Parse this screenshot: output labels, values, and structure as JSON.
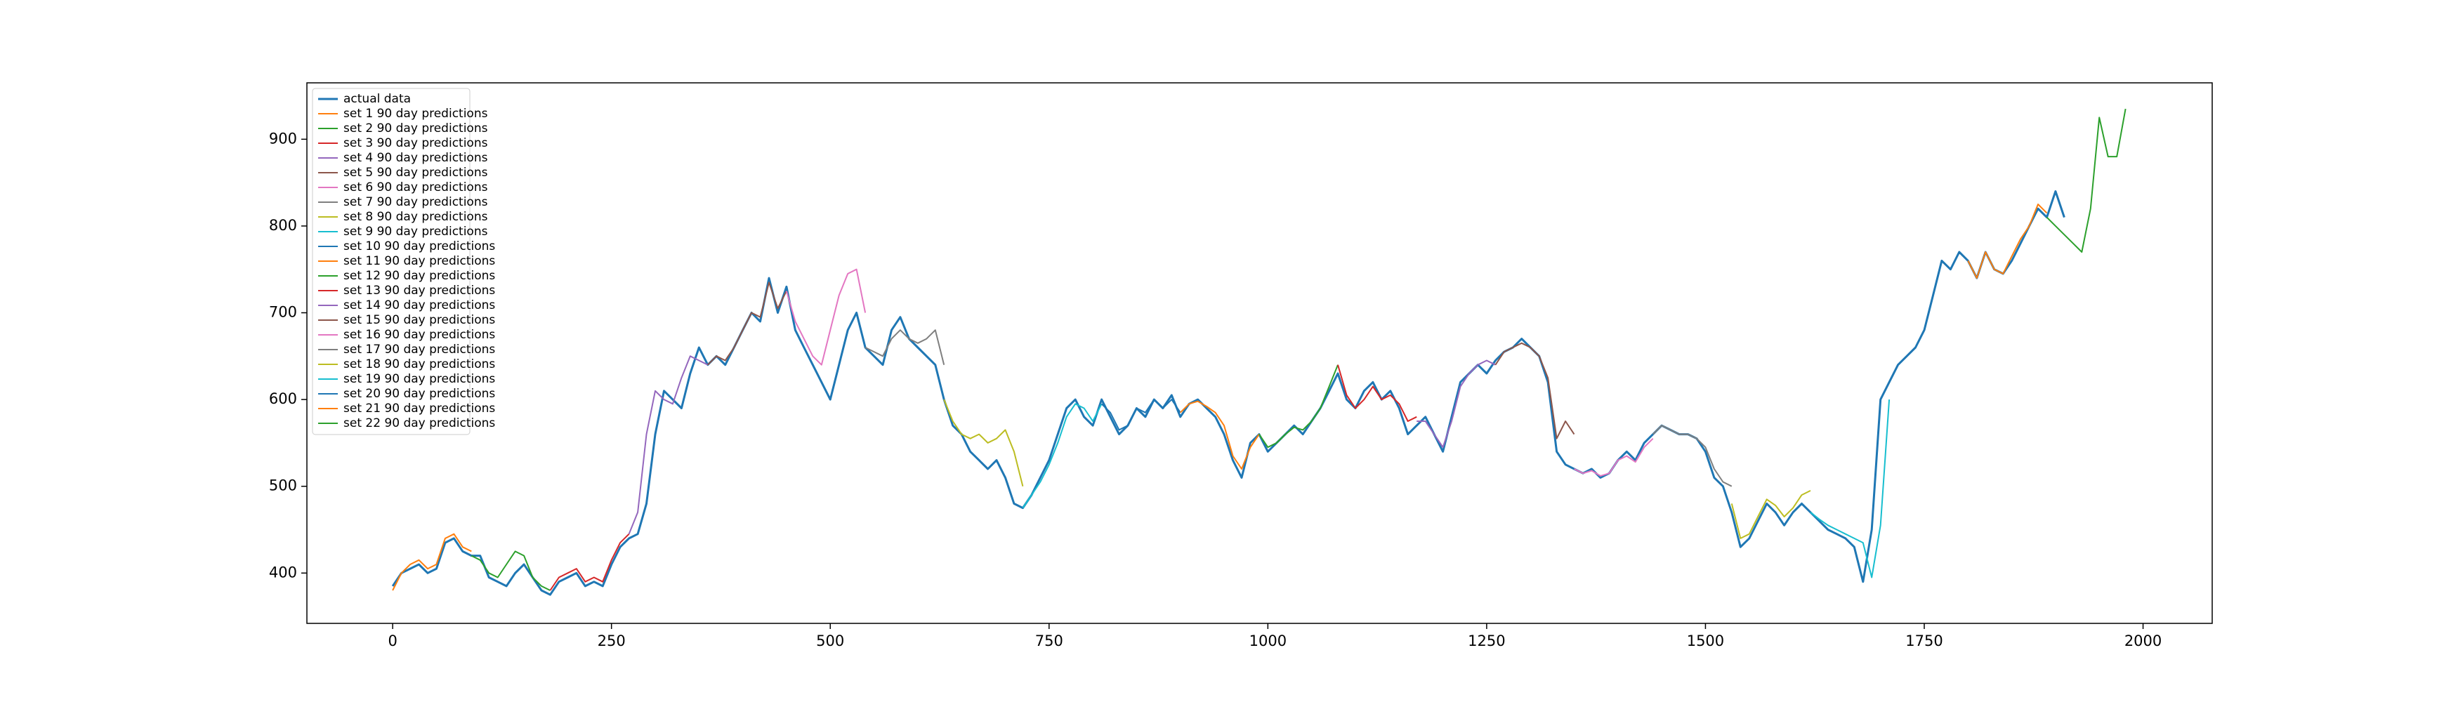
{
  "chart_data": {
    "type": "line",
    "xlim": [
      -98,
      2079
    ],
    "ylim": [
      342,
      965
    ],
    "xticks": [
      0,
      250,
      500,
      750,
      1000,
      1250,
      1500,
      1750,
      2000
    ],
    "yticks": [
      400,
      500,
      600,
      700,
      800,
      900
    ],
    "legend": "upper left",
    "series": [
      {
        "name": "actual data",
        "color": "#1f77b4",
        "x": [
          0,
          10,
          20,
          30,
          40,
          50,
          60,
          70,
          80,
          90,
          100,
          110,
          120,
          130,
          140,
          150,
          160,
          170,
          180,
          190,
          200,
          210,
          220,
          230,
          240,
          250,
          260,
          270,
          280,
          290,
          300,
          310,
          320,
          330,
          340,
          350,
          360,
          370,
          380,
          390,
          400,
          410,
          420,
          430,
          440,
          450,
          460,
          470,
          480,
          490,
          500,
          510,
          520,
          530,
          540,
          550,
          560,
          570,
          580,
          590,
          600,
          610,
          620,
          630,
          640,
          650,
          660,
          670,
          680,
          690,
          700,
          710,
          720,
          730,
          740,
          750,
          760,
          770,
          780,
          790,
          800,
          810,
          820,
          830,
          840,
          850,
          860,
          870,
          880,
          890,
          900,
          910,
          920,
          930,
          940,
          950,
          960,
          970,
          980,
          990,
          1000,
          1010,
          1020,
          1030,
          1040,
          1050,
          1060,
          1070,
          1080,
          1090,
          1100,
          1110,
          1120,
          1130,
          1140,
          1150,
          1160,
          1170,
          1180,
          1190,
          1200,
          1210,
          1220,
          1230,
          1240,
          1250,
          1260,
          1270,
          1280,
          1290,
          1300,
          1310,
          1320,
          1330,
          1340,
          1350,
          1360,
          1370,
          1380,
          1390,
          1400,
          1410,
          1420,
          1430,
          1440,
          1450,
          1460,
          1470,
          1480,
          1490,
          1500,
          1510,
          1520,
          1530,
          1540,
          1550,
          1560,
          1570,
          1580,
          1590,
          1600,
          1610,
          1620,
          1630,
          1640,
          1650,
          1660,
          1670,
          1680,
          1690,
          1700,
          1710,
          1720,
          1730,
          1740,
          1750,
          1760,
          1770,
          1780,
          1790,
          1800,
          1810,
          1820,
          1830,
          1840,
          1850,
          1860,
          1870,
          1880,
          1890,
          1900,
          1910
        ],
        "values": [
          385,
          400,
          405,
          410,
          400,
          405,
          435,
          440,
          425,
          420,
          420,
          395,
          390,
          385,
          400,
          410,
          395,
          380,
          375,
          390,
          395,
          400,
          385,
          390,
          385,
          410,
          430,
          440,
          445,
          480,
          560,
          610,
          600,
          590,
          630,
          660,
          640,
          650,
          640,
          660,
          680,
          700,
          690,
          740,
          700,
          730,
          680,
          660,
          640,
          620,
          600,
          640,
          680,
          700,
          660,
          650,
          640,
          680,
          695,
          670,
          660,
          650,
          640,
          600,
          570,
          560,
          540,
          530,
          520,
          530,
          510,
          480,
          475,
          490,
          510,
          530,
          560,
          590,
          600,
          580,
          570,
          600,
          580,
          560,
          570,
          590,
          580,
          600,
          590,
          605,
          580,
          595,
          600,
          590,
          580,
          560,
          530,
          510,
          550,
          560,
          540,
          550,
          560,
          570,
          560,
          575,
          590,
          610,
          630,
          600,
          590,
          610,
          620,
          600,
          610,
          590,
          560,
          570,
          580,
          560,
          540,
          580,
          620,
          630,
          640,
          630,
          645,
          655,
          660,
          670,
          660,
          650,
          620,
          540,
          525,
          520,
          515,
          520,
          510,
          515,
          530,
          540,
          530,
          550,
          560,
          570,
          565,
          560,
          560,
          555,
          540,
          510,
          500,
          470,
          430,
          440,
          460,
          480,
          470,
          455,
          470,
          480,
          470,
          460,
          450,
          445,
          440,
          430,
          390,
          450,
          600,
          620,
          640,
          650,
          660,
          680,
          720,
          760,
          750,
          770,
          760,
          740,
          770,
          750,
          745,
          760,
          780,
          800,
          820,
          810,
          840,
          810
        ]
      },
      {
        "name": "set 1 90 day predictions",
        "color": "#ff7f0e",
        "x": [
          0,
          10,
          20,
          30,
          40,
          50,
          60,
          70,
          80,
          90
        ],
        "values": [
          380,
          400,
          410,
          415,
          405,
          410,
          440,
          445,
          430,
          425
        ]
      },
      {
        "name": "set 2 90 day predictions",
        "color": "#2ca02c",
        "x": [
          90,
          100,
          110,
          120,
          130,
          140,
          150,
          160,
          170,
          180
        ],
        "values": [
          420,
          415,
          400,
          395,
          410,
          425,
          420,
          395,
          385,
          380
        ]
      },
      {
        "name": "set 3 90 day predictions",
        "color": "#d62728",
        "x": [
          180,
          190,
          200,
          210,
          220,
          230,
          240,
          250,
          260,
          270
        ],
        "values": [
          380,
          395,
          400,
          405,
          390,
          395,
          390,
          415,
          435,
          445
        ]
      },
      {
        "name": "set 4 90 day predictions",
        "color": "#9467bd",
        "x": [
          270,
          280,
          290,
          300,
          310,
          320,
          330,
          340,
          350,
          360
        ],
        "values": [
          445,
          470,
          560,
          610,
          600,
          595,
          625,
          650,
          645,
          640
        ]
      },
      {
        "name": "set 5 90 day predictions",
        "color": "#8c564b",
        "x": [
          360,
          370,
          380,
          390,
          400,
          410,
          420,
          430,
          440,
          450
        ],
        "values": [
          640,
          650,
          645,
          660,
          680,
          700,
          695,
          735,
          705,
          725
        ]
      },
      {
        "name": "set 6 90 day predictions",
        "color": "#e377c2",
        "x": [
          450,
          460,
          470,
          480,
          490,
          500,
          510,
          520,
          530,
          540
        ],
        "values": [
          725,
          690,
          670,
          650,
          640,
          680,
          720,
          745,
          750,
          700
        ]
      },
      {
        "name": "set 7 90 day predictions",
        "color": "#7f7f7f",
        "x": [
          540,
          550,
          560,
          570,
          580,
          590,
          600,
          610,
          620,
          630
        ],
        "values": [
          660,
          655,
          650,
          670,
          680,
          670,
          665,
          670,
          680,
          640
        ]
      },
      {
        "name": "set 8 90 day predictions",
        "color": "#bcbd22",
        "x": [
          630,
          640,
          650,
          660,
          670,
          680,
          690,
          700,
          710,
          720
        ],
        "values": [
          600,
          575,
          560,
          555,
          560,
          550,
          555,
          565,
          540,
          500
        ]
      },
      {
        "name": "set 9 90 day predictions",
        "color": "#17becf",
        "x": [
          720,
          730,
          740,
          750,
          760,
          770,
          780,
          790,
          800,
          810
        ],
        "values": [
          475,
          490,
          505,
          525,
          550,
          580,
          595,
          590,
          575,
          595
        ]
      },
      {
        "name": "set 10 90 day predictions",
        "color": "#1f77b4",
        "x": [
          810,
          820,
          830,
          840,
          850,
          860,
          870,
          880,
          890,
          900
        ],
        "values": [
          595,
          585,
          565,
          570,
          590,
          585,
          600,
          590,
          600,
          585
        ]
      },
      {
        "name": "set 11 90 day predictions",
        "color": "#ff7f0e",
        "x": [
          900,
          910,
          920,
          930,
          940,
          950,
          960,
          970,
          980,
          990
        ],
        "values": [
          585,
          595,
          598,
          592,
          585,
          570,
          535,
          520,
          545,
          560
        ]
      },
      {
        "name": "set 12 90 day predictions",
        "color": "#2ca02c",
        "x": [
          990,
          1000,
          1010,
          1020,
          1030,
          1040,
          1050,
          1060,
          1070,
          1080
        ],
        "values": [
          560,
          545,
          550,
          560,
          568,
          565,
          575,
          590,
          615,
          640
        ]
      },
      {
        "name": "set 13 90 day predictions",
        "color": "#d62728",
        "x": [
          1080,
          1090,
          1100,
          1110,
          1120,
          1130,
          1140,
          1150,
          1160,
          1170
        ],
        "values": [
          640,
          605,
          590,
          600,
          615,
          600,
          605,
          595,
          575,
          580
        ]
      },
      {
        "name": "set 14 90 day predictions",
        "color": "#9467bd",
        "x": [
          1170,
          1180,
          1190,
          1200,
          1210,
          1220,
          1230,
          1240,
          1250,
          1260
        ],
        "values": [
          575,
          575,
          560,
          545,
          575,
          615,
          630,
          640,
          645,
          640
        ]
      },
      {
        "name": "set 15 90 day predictions",
        "color": "#8c564b",
        "x": [
          1260,
          1270,
          1280,
          1290,
          1300,
          1310,
          1320,
          1330,
          1340,
          1350
        ],
        "values": [
          640,
          655,
          660,
          665,
          660,
          650,
          625,
          555,
          575,
          560
        ]
      },
      {
        "name": "set 16 90 day predictions",
        "color": "#e377c2",
        "x": [
          1350,
          1360,
          1370,
          1380,
          1390,
          1400,
          1410,
          1420,
          1430,
          1440
        ],
        "values": [
          520,
          515,
          518,
          512,
          515,
          530,
          535,
          528,
          545,
          555
        ]
      },
      {
        "name": "set 17 90 day predictions",
        "color": "#7f7f7f",
        "x": [
          1440,
          1450,
          1460,
          1470,
          1480,
          1490,
          1500,
          1510,
          1520,
          1530
        ],
        "values": [
          560,
          570,
          565,
          560,
          560,
          555,
          545,
          520,
          505,
          500
        ]
      },
      {
        "name": "set 18 90 day predictions",
        "color": "#bcbd22",
        "x": [
          1530,
          1540,
          1550,
          1560,
          1570,
          1580,
          1590,
          1600,
          1610,
          1620
        ],
        "values": [
          480,
          440,
          445,
          465,
          485,
          478,
          465,
          475,
          490,
          495
        ]
      },
      {
        "name": "set 19 90 day predictions",
        "color": "#17becf",
        "x": [
          1620,
          1630,
          1640,
          1650,
          1660,
          1670,
          1680,
          1690,
          1700,
          1710
        ],
        "values": [
          470,
          462,
          455,
          450,
          445,
          440,
          435,
          395,
          455,
          600
        ]
      },
      {
        "name": "set 20 90 day predictions",
        "color": "#1f77b4",
        "x": [
          1710,
          1720,
          1730,
          1740,
          1750,
          1760,
          1770,
          1780,
          1790,
          1800
        ],
        "values": [
          620,
          640,
          650,
          660,
          680,
          720,
          760,
          750,
          770,
          760
        ]
      },
      {
        "name": "set 21 90 day predictions",
        "color": "#ff7f0e",
        "x": [
          1800,
          1810,
          1820,
          1830,
          1840,
          1850,
          1860,
          1870,
          1880,
          1890
        ],
        "values": [
          760,
          740,
          770,
          750,
          745,
          765,
          785,
          800,
          825,
          815
        ]
      },
      {
        "name": "set 22 90 day predictions",
        "color": "#2ca02c",
        "x": [
          1890,
          1900,
          1910,
          1920,
          1930,
          1940,
          1950,
          1960,
          1970,
          1980
        ],
        "values": [
          810,
          800,
          790,
          780,
          770,
          820,
          925,
          880,
          880,
          935
        ]
      }
    ]
  }
}
